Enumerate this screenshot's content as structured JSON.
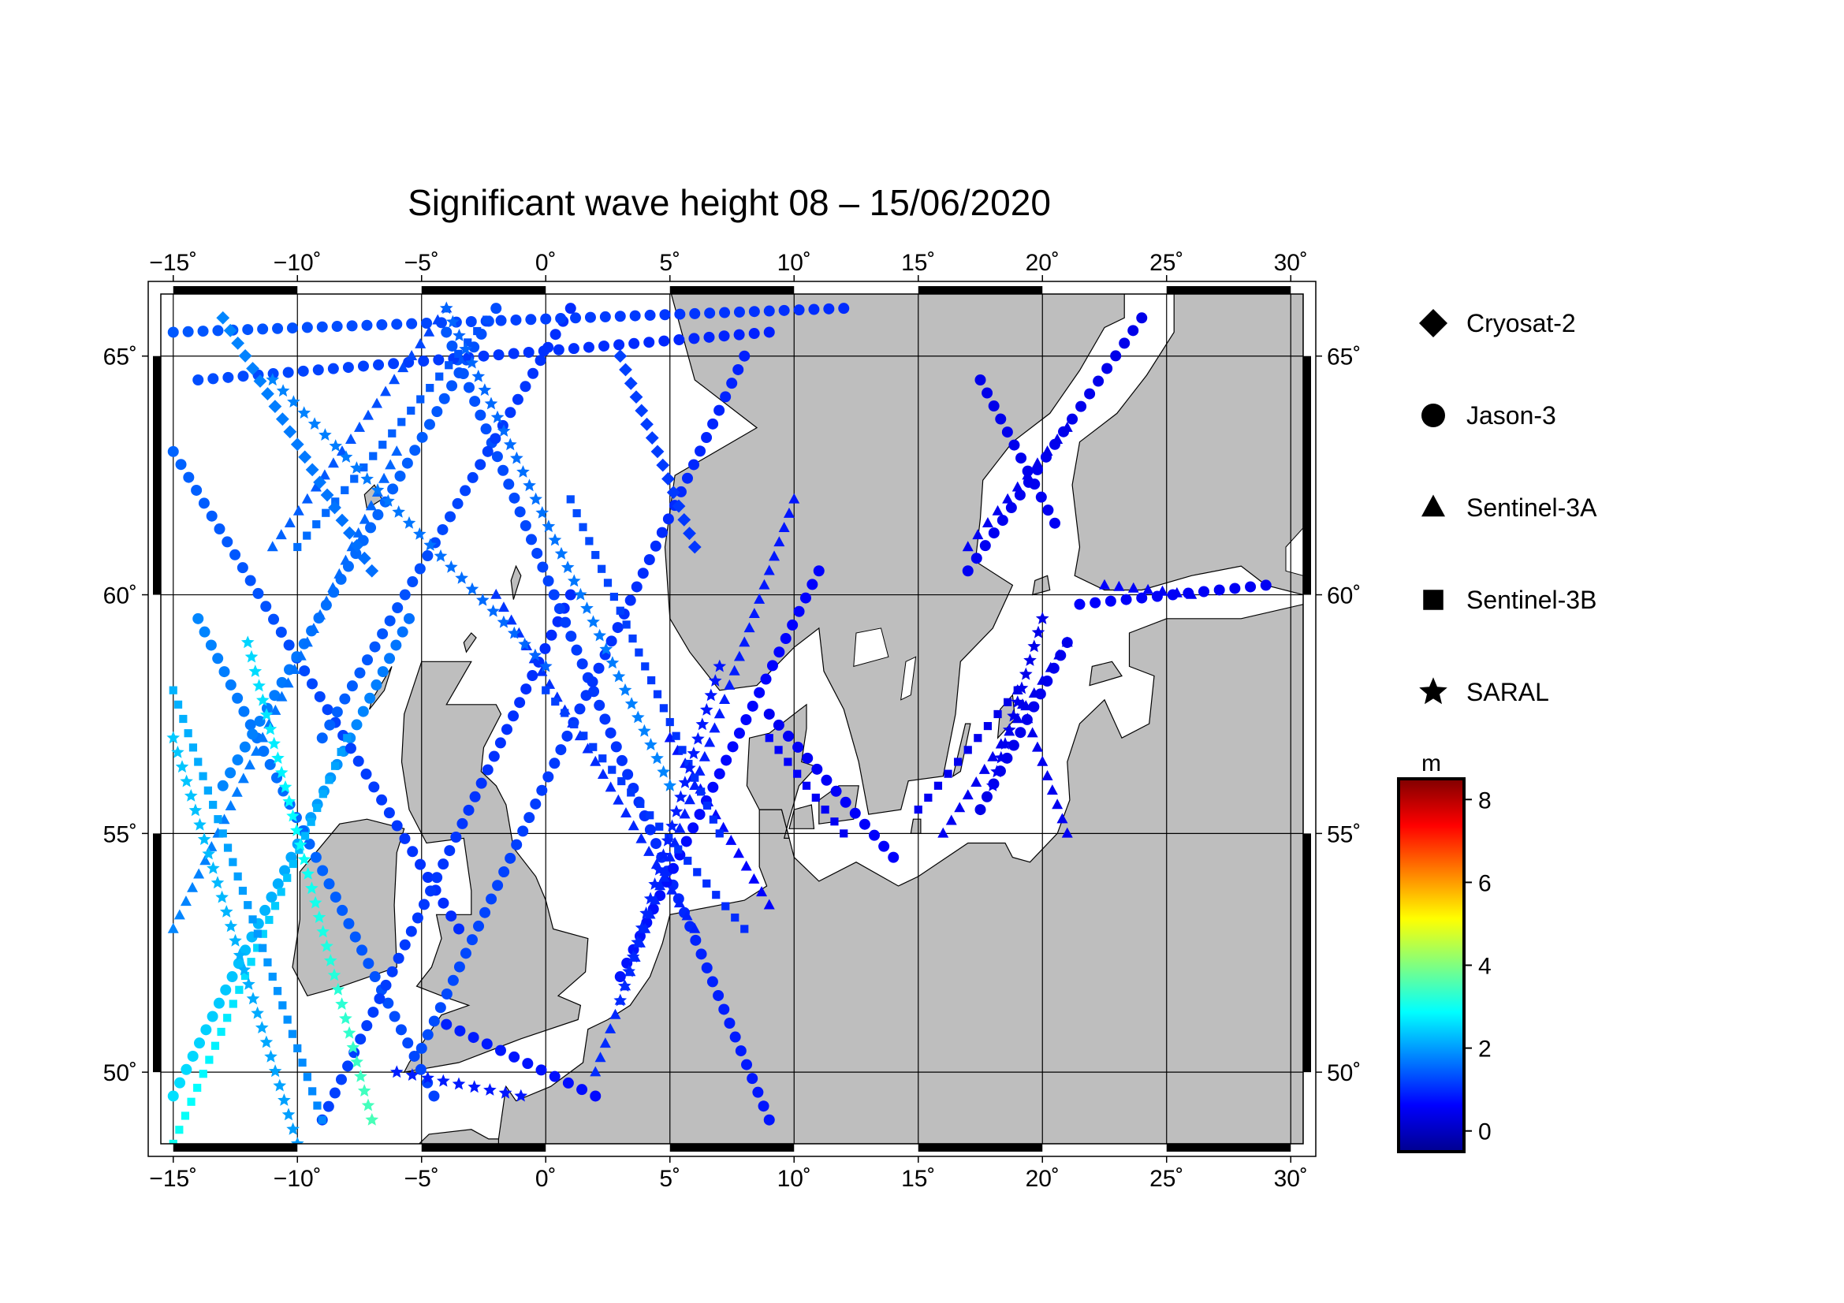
{
  "title": "Significant wave height 08 – 15/06/2020",
  "map": {
    "lon_range": [
      -15.5,
      30.5
    ],
    "lat_range": [
      48.5,
      66.3
    ],
    "lon_ticks": [
      -15,
      -10,
      -5,
      0,
      5,
      10,
      15,
      20,
      25,
      30
    ],
    "lat_ticks": [
      50,
      55,
      60,
      65
    ],
    "lon_tick_labels": [
      "−15˚",
      "−10˚",
      "−5˚",
      "0˚",
      "5˚",
      "10˚",
      "15˚",
      "20˚",
      "25˚",
      "30˚"
    ],
    "lat_tick_labels": [
      "50˚",
      "55˚",
      "60˚",
      "65˚"
    ],
    "land_color": "#bebebe",
    "sea_color": "#ffffff",
    "grid": true
  },
  "legend": {
    "items": [
      {
        "label": "Cryosat-2",
        "symbol": "diamond-icon"
      },
      {
        "label": "Jason-3",
        "symbol": "circle-icon"
      },
      {
        "label": "Sentinel-3A",
        "symbol": "triangle-icon"
      },
      {
        "label": "Sentinel-3B",
        "symbol": "square-icon"
      },
      {
        "label": "SARAL",
        "symbol": "star-icon"
      }
    ]
  },
  "colorbar": {
    "unit": "m",
    "range": [
      -0.5,
      8.5
    ],
    "ticks": [
      0,
      2,
      4,
      6,
      8
    ],
    "tick_labels": [
      "0",
      "2",
      "4",
      "6",
      "8"
    ],
    "colors": [
      "#00008f",
      "#0000ff",
      "#0080ff",
      "#00ffff",
      "#80ff80",
      "#ffff00",
      "#ff8000",
      "#ff0000",
      "#800000"
    ]
  },
  "chart_data": {
    "type": "scatter",
    "title": "Significant wave height 08 – 15/06/2020",
    "xlabel": "",
    "ylabel": "",
    "xlim": [
      -15.5,
      30.5
    ],
    "ylim": [
      48.5,
      66.3
    ],
    "color_variable": "significant wave height (m)",
    "series": [
      {
        "name": "Jason-3",
        "marker": "circle",
        "tracks": [
          {
            "from": [
              -15,
              49.5
            ],
            "to": [
              -5.5,
              59.5
            ],
            "swh": [
              2.6,
              1.6
            ]
          },
          {
            "from": [
              -14,
              59.5
            ],
            "to": [
              -4.5,
              49.5
            ],
            "swh": [
              1.8,
              1.2
            ]
          },
          {
            "from": [
              -15,
              63.0
            ],
            "to": [
              -3.5,
              53.0
            ],
            "swh": [
              1.5,
              1.0
            ]
          },
          {
            "from": [
              -9,
              49.0
            ],
            "to": [
              1,
              60.0
            ],
            "swh": [
              1.2,
              1.0
            ]
          },
          {
            "from": [
              -13,
              56.0
            ],
            "to": [
              -2,
              66.0
            ],
            "swh": [
              1.8,
              1.3
            ]
          },
          {
            "from": [
              -4,
              65.5
            ],
            "to": [
              9,
              49.0
            ],
            "swh": [
              1.4,
              0.8
            ]
          },
          {
            "from": [
              -9,
              57.0
            ],
            "to": [
              1,
              66.0
            ],
            "swh": [
              1.5,
              1.0
            ]
          },
          {
            "from": [
              -5,
              50.5
            ],
            "to": [
              8,
              65.0
            ],
            "swh": [
              1.3,
              0.9
            ]
          },
          {
            "from": [
              3,
              52.0
            ],
            "to": [
              11,
              60.5
            ],
            "swh": [
              0.8,
              0.6
            ]
          },
          {
            "from": [
              14,
              54.5
            ],
            "to": [
              9,
              57.5
            ],
            "swh": [
              0.6,
              0.5
            ]
          },
          {
            "from": [
              -4,
              51.0
            ],
            "to": [
              2,
              49.5
            ],
            "swh": [
              0.9,
              0.7
            ]
          },
          {
            "from": [
              17,
              60.5
            ],
            "to": [
              24,
              65.8
            ],
            "swh": [
              0.5,
              0.4
            ]
          },
          {
            "from": [
              21,
              59.0
            ],
            "to": [
              17.5,
              55.5
            ],
            "swh": [
              0.5,
              0.4
            ]
          },
          {
            "from": [
              20.5,
              61.5
            ],
            "to": [
              17.5,
              64.5
            ],
            "swh": [
              0.5,
              0.4
            ]
          },
          {
            "from": [
              21.5,
              59.8
            ],
            "to": [
              29,
              60.2
            ],
            "swh": [
              0.6,
              0.5
            ]
          },
          {
            "from": [
              -15,
              65.5
            ],
            "to": [
              12,
              66.0
            ],
            "swh": [
              1.4,
              1.0
            ]
          },
          {
            "from": [
              -14,
              64.5
            ],
            "to": [
              9,
              65.5
            ],
            "swh": [
              1.3,
              0.9
            ]
          }
        ]
      },
      {
        "name": "Sentinel-3A",
        "marker": "triangle",
        "tracks": [
          {
            "from": [
              -15,
              53.0
            ],
            "to": [
              -6,
              63.0
            ],
            "swh": [
              1.8,
              1.5
            ]
          },
          {
            "from": [
              -11,
              61.0
            ],
            "to": [
              -4,
              66.0
            ],
            "swh": [
              1.5,
              1.2
            ]
          },
          {
            "from": [
              2,
              50.0
            ],
            "to": [
              10,
              62.0
            ],
            "swh": [
              1.0,
              0.8
            ]
          },
          {
            "from": [
              5,
              57.0
            ],
            "to": [
              9,
              53.5
            ],
            "swh": [
              0.8,
              0.6
            ]
          },
          {
            "from": [
              -2,
              60.0
            ],
            "to": [
              6,
              53.0
            ],
            "swh": [
              1.1,
              0.9
            ]
          },
          {
            "from": [
              16,
              55.0
            ],
            "to": [
              21,
              59.0
            ],
            "swh": [
              0.5,
              0.4
            ]
          },
          {
            "from": [
              17,
              61.0
            ],
            "to": [
              21,
              63.5
            ],
            "swh": [
              0.5,
              0.4
            ]
          },
          {
            "from": [
              21,
              55.0
            ],
            "to": [
              19,
              58.0
            ],
            "swh": [
              0.5,
              0.4
            ]
          },
          {
            "from": [
              22.5,
              60.2
            ],
            "to": [
              26,
              60.0
            ],
            "swh": [
              0.6,
              0.5
            ]
          }
        ]
      },
      {
        "name": "Sentinel-3B",
        "marker": "square",
        "tracks": [
          {
            "from": [
              -15,
              48.5
            ],
            "to": [
              -8,
              57.0
            ],
            "swh": [
              3.0,
              2.0
            ]
          },
          {
            "from": [
              -15,
              58.0
            ],
            "to": [
              -9,
              49.0
            ],
            "swh": [
              2.2,
              1.8
            ]
          },
          {
            "from": [
              -10,
              61.0
            ],
            "to": [
              -2,
              66.0
            ],
            "swh": [
              1.6,
              1.3
            ]
          },
          {
            "from": [
              0,
              58.0
            ],
            "to": [
              8,
              53.0
            ],
            "swh": [
              1.2,
              1.0
            ]
          },
          {
            "from": [
              1,
              62.0
            ],
            "to": [
              7,
              55.0
            ],
            "swh": [
              1.3,
              1.0
            ]
          },
          {
            "from": [
              15,
              55.5
            ],
            "to": [
              19,
              58.0
            ],
            "swh": [
              0.5,
              0.4
            ]
          },
          {
            "from": [
              9,
              57.0
            ],
            "to": [
              12,
              55.0
            ],
            "swh": [
              0.6,
              0.5
            ]
          }
        ]
      },
      {
        "name": "SARAL",
        "marker": "star",
        "tracks": [
          {
            "from": [
              -15,
              57.0
            ],
            "to": [
              -10,
              48.5
            ],
            "swh": [
              2.4,
              2.0
            ]
          },
          {
            "from": [
              -12,
              59.0
            ],
            "to": [
              -7,
              49.0
            ],
            "swh": [
              2.5,
              3.5
            ]
          },
          {
            "from": [
              -11,
              64.5
            ],
            "to": [
              0,
              58.5
            ],
            "swh": [
              1.8,
              1.5
            ]
          },
          {
            "from": [
              3,
              51.5
            ],
            "to": [
              7,
              58.5
            ],
            "swh": [
              1.0,
              0.8
            ]
          },
          {
            "from": [
              -4,
              66.0
            ],
            "to": [
              5,
              56.0
            ],
            "swh": [
              1.5,
              1.8
            ]
          },
          {
            "from": [
              -6,
              50.0
            ],
            "to": [
              -1,
              49.5
            ],
            "swh": [
              0.9,
              0.8
            ]
          },
          {
            "from": [
              18,
              56.0
            ],
            "to": [
              20,
              59.5
            ],
            "swh": [
              0.5,
              0.4
            ]
          }
        ]
      },
      {
        "name": "Cryosat-2",
        "marker": "diamond",
        "tracks": [
          {
            "from": [
              -13,
              65.8
            ],
            "to": [
              -7,
              60.5
            ],
            "swh": [
              1.8,
              1.6
            ]
          },
          {
            "from": [
              3,
              65.0
            ],
            "to": [
              6,
              61.0
            ],
            "swh": [
              1.2,
              1.1
            ]
          }
        ]
      }
    ]
  }
}
